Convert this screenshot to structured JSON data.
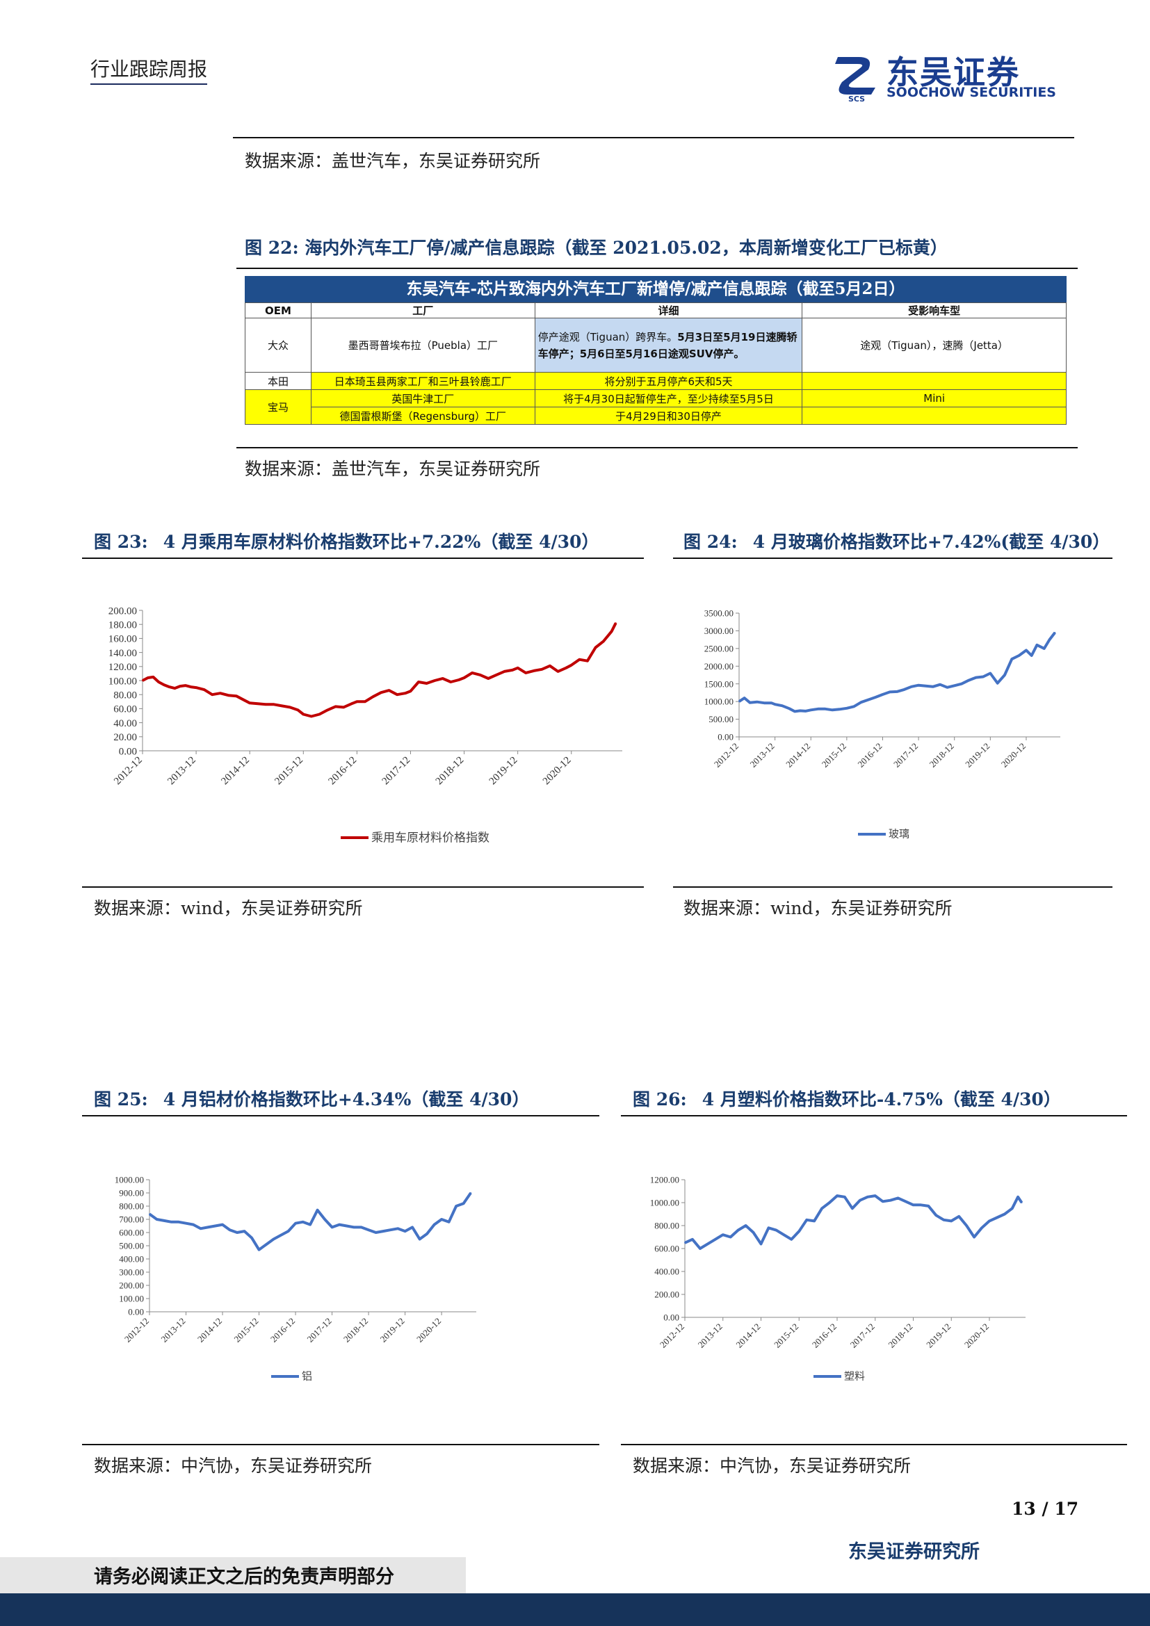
{
  "header": {
    "report_type": "行业跟踪周报",
    "logo_cn": "东吴证券",
    "logo_en": "SOOCHOW SECURITIES",
    "logo_mark": "SCS"
  },
  "top_source": "数据来源：盖世汽车，东吴证券研究所",
  "fig22": {
    "title": "图 22:  海内外汽车工厂停/减产信息跟踪（截至 2021.05.02，本周新增变化工厂已标黄）",
    "table_title": "东吴汽车-芯片致海内外汽车工厂新增停/减产信息跟踪（截至5月2日）",
    "columns": [
      "OEM",
      "工厂",
      "详细",
      "受影响车型"
    ],
    "rows": [
      {
        "oem": "大众",
        "factory": "墨西哥普埃布拉（Puebla）工厂",
        "detail_a": "停产途观（Tiguan）跨界车。",
        "detail_b": "5月3日至5月19日速腾轿车停产；5月6日至5月16日途观SUV停产。",
        "models": "途观（Tiguan），速腾（Jetta）"
      },
      {
        "oem": "本田",
        "factory": "日本琦玉县两家工厂和三叶县铃鹿工厂",
        "detail": "将分别于五月停产6天和5天",
        "models": ""
      },
      {
        "oem": "宝马",
        "factory": "英国牛津工厂",
        "detail": "将于4月30日起暂停生产，至少持续至5月5日",
        "models": "Mini"
      },
      {
        "oem": "",
        "factory": "德国雷根斯堡（Regensburg）工厂",
        "detail": "于4月29日和30日停产",
        "models": ""
      }
    ],
    "source": "数据来源：盖世汽车，东吴证券研究所"
  },
  "fig23": {
    "title_num": "图 23:",
    "title": "4 月乘用车原材料价格指数环比+7.22%（截至 4/30）",
    "source": "数据来源：wind，东吴证券研究所"
  },
  "fig24": {
    "title_num": "图 24:",
    "title": "4 月玻璃价格指数环比+7.42%(截至 4/30）",
    "source": "数据来源：wind，东吴证券研究所"
  },
  "fig25": {
    "title_num": "图 25:",
    "title": "4 月铝材价格指数环比+4.34%（截至 4/30）",
    "source": "数据来源：中汽协，东吴证券研究所"
  },
  "fig26": {
    "title_num": "图 26:",
    "title": "4 月塑料价格指数环比-4.75%（截至 4/30）",
    "source": "数据来源：中汽协，东吴证券研究所"
  },
  "chart_data": [
    {
      "id": "fig23",
      "type": "line",
      "categories": [
        "2012-12",
        "2013-12",
        "2014-12",
        "2015-12",
        "2016-12",
        "2017-12",
        "2018-12",
        "2019-12",
        "2020-12"
      ],
      "ylim": [
        0,
        200
      ],
      "yticks": [
        "0.00",
        "20.00",
        "40.00",
        "60.00",
        "80.00",
        "100.00",
        "120.00",
        "140.00",
        "160.00",
        "180.00",
        "200.00"
      ],
      "grid": false,
      "legend_position": "bottom",
      "color": "#c00000",
      "series": [
        {
          "name": "乘用车原材料价格指数",
          "x": [
            0,
            0.1,
            0.2,
            0.3,
            0.4,
            0.5,
            0.6,
            0.7,
            0.8,
            0.9,
            1,
            1.15,
            1.3,
            1.45,
            1.6,
            1.75,
            1.9,
            2,
            2.15,
            2.3,
            2.45,
            2.6,
            2.75,
            2.9,
            3,
            3.15,
            3.3,
            3.45,
            3.6,
            3.75,
            3.9,
            4,
            4.15,
            4.3,
            4.45,
            4.6,
            4.75,
            4.9,
            5,
            5.15,
            5.3,
            5.45,
            5.6,
            5.75,
            5.9,
            6,
            6.15,
            6.3,
            6.45,
            6.6,
            6.75,
            6.9,
            7,
            7.15,
            7.3,
            7.45,
            7.6,
            7.75,
            7.9,
            8,
            8.15,
            8.3,
            8.45,
            8.6,
            8.75,
            8.83
          ],
          "values": [
            100,
            104,
            105,
            98,
            94,
            91,
            89,
            92,
            93,
            91,
            90,
            87,
            80,
            82,
            79,
            78,
            72,
            68,
            67,
            66,
            66,
            64,
            62,
            58,
            52,
            49,
            52,
            58,
            63,
            62,
            67,
            70,
            70,
            77,
            83,
            86,
            80,
            82,
            85,
            98,
            96,
            100,
            103,
            98,
            101,
            104,
            111,
            108,
            103,
            108,
            113,
            115,
            118,
            111,
            114,
            116,
            121,
            113,
            118,
            122,
            130,
            128,
            147,
            156,
            170,
            182
          ]
        }
      ]
    },
    {
      "id": "fig24",
      "type": "line",
      "categories": [
        "2012-12",
        "2013-12",
        "2014-12",
        "2015-12",
        "2016-12",
        "2017-12",
        "2018-12",
        "2019-12",
        "2020-12"
      ],
      "ylim": [
        0,
        3500
      ],
      "yticks": [
        "0.00",
        "500.00",
        "1000.00",
        "1500.00",
        "2000.00",
        "2500.00",
        "3000.00",
        "3500.00"
      ],
      "grid": false,
      "legend_position": "bottom",
      "color": "#4472c4",
      "series": [
        {
          "name": "玻璃",
          "x": [
            0,
            0.15,
            0.3,
            0.5,
            0.7,
            0.9,
            1,
            1.2,
            1.4,
            1.55,
            1.7,
            1.85,
            2,
            2.2,
            2.4,
            2.6,
            2.8,
            3,
            3.2,
            3.4,
            3.6,
            3.8,
            4,
            4.2,
            4.4,
            4.6,
            4.8,
            5,
            5.2,
            5.4,
            5.6,
            5.8,
            6,
            6.2,
            6.4,
            6.6,
            6.8,
            7,
            7.2,
            7.4,
            7.6,
            7.8,
            8,
            8.15,
            8.3,
            8.5,
            8.65,
            8.8
          ],
          "values": [
            1000,
            1100,
            970,
            990,
            960,
            960,
            920,
            880,
            800,
            720,
            740,
            730,
            760,
            790,
            790,
            760,
            780,
            810,
            860,
            980,
            1050,
            1120,
            1200,
            1270,
            1280,
            1340,
            1420,
            1460,
            1440,
            1420,
            1480,
            1400,
            1450,
            1500,
            1600,
            1680,
            1700,
            1800,
            1520,
            1750,
            2200,
            2300,
            2450,
            2300,
            2600,
            2500,
            2750,
            2950
          ]
        }
      ]
    },
    {
      "id": "fig25",
      "type": "line",
      "categories": [
        "2012-12",
        "2013-12",
        "2014-12",
        "2015-12",
        "2016-12",
        "2017-12",
        "2018-12",
        "2019-12",
        "2020-12"
      ],
      "ylim": [
        0,
        1000
      ],
      "yticks": [
        "0.00",
        "100.00",
        "200.00",
        "300.00",
        "400.00",
        "500.00",
        "600.00",
        "700.00",
        "800.00",
        "900.00",
        "1000.00"
      ],
      "grid": false,
      "legend_position": "bottom",
      "color": "#4472c4",
      "series": [
        {
          "name": "铝",
          "x": [
            0,
            0.2,
            0.4,
            0.6,
            0.8,
            1,
            1.2,
            1.4,
            1.6,
            1.8,
            2,
            2.2,
            2.4,
            2.6,
            2.8,
            3,
            3.2,
            3.4,
            3.6,
            3.8,
            4,
            4.2,
            4.4,
            4.6,
            4.8,
            5,
            5.2,
            5.4,
            5.6,
            5.8,
            6,
            6.2,
            6.4,
            6.6,
            6.8,
            7,
            7.2,
            7.4,
            7.6,
            7.8,
            8,
            8.2,
            8.4,
            8.6,
            8.8
          ],
          "values": [
            740,
            700,
            690,
            680,
            680,
            670,
            660,
            630,
            640,
            650,
            660,
            620,
            600,
            610,
            560,
            470,
            510,
            550,
            580,
            610,
            670,
            680,
            660,
            770,
            700,
            640,
            660,
            650,
            640,
            640,
            620,
            600,
            610,
            620,
            630,
            610,
            640,
            550,
            590,
            660,
            700,
            680,
            800,
            820,
            900
          ]
        }
      ]
    },
    {
      "id": "fig26",
      "type": "line",
      "categories": [
        "2012-12",
        "2013-12",
        "2014-12",
        "2015-12",
        "2016-12",
        "2017-12",
        "2018-12",
        "2019-12",
        "2020-12"
      ],
      "ylim": [
        0,
        1200
      ],
      "yticks": [
        "0.00",
        "200.00",
        "400.00",
        "600.00",
        "800.00",
        "1000.00",
        "1200.00"
      ],
      "grid": false,
      "legend_position": "bottom",
      "color": "#4472c4",
      "series": [
        {
          "name": "塑料",
          "x": [
            0,
            0.2,
            0.4,
            0.6,
            0.8,
            1,
            1.2,
            1.4,
            1.6,
            1.8,
            2,
            2.2,
            2.4,
            2.6,
            2.8,
            3,
            3.2,
            3.4,
            3.6,
            3.8,
            4,
            4.2,
            4.4,
            4.6,
            4.8,
            5,
            5.2,
            5.4,
            5.6,
            5.8,
            6,
            6.2,
            6.4,
            6.6,
            6.8,
            7,
            7.2,
            7.4,
            7.6,
            7.8,
            8,
            8.2,
            8.4,
            8.6,
            8.75,
            8.85
          ],
          "values": [
            650,
            680,
            600,
            640,
            680,
            720,
            700,
            760,
            800,
            740,
            640,
            780,
            760,
            720,
            680,
            750,
            850,
            840,
            950,
            1000,
            1060,
            1050,
            950,
            1020,
            1050,
            1060,
            1010,
            1020,
            1040,
            1010,
            980,
            980,
            970,
            890,
            850,
            840,
            880,
            800,
            700,
            780,
            840,
            870,
            900,
            950,
            1050,
            1000
          ]
        }
      ]
    }
  ],
  "page_number": "13 / 17",
  "footer": {
    "disclaimer": "请务必阅读正文之后的免责声明部分",
    "org": "东吴证券研究所"
  }
}
